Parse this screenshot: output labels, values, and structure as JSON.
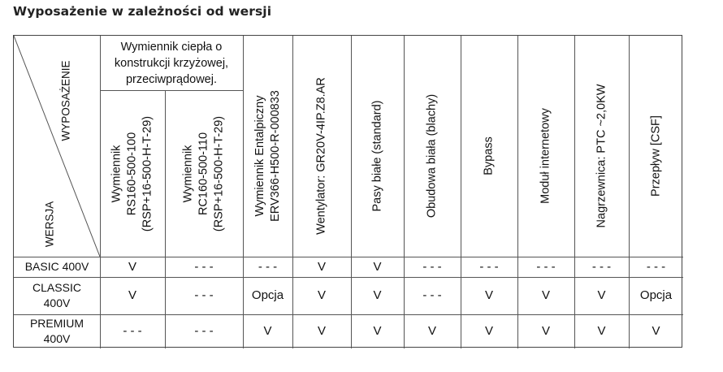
{
  "title": "Wyposażenie w zależności od wersji",
  "table": {
    "corner": {
      "top_right": "WYPOSAŻENIE",
      "bottom_left": "WERSJA"
    },
    "group_header": [
      "Wymiennik ciepła o",
      "konstrukcji krzyżowej,",
      "przeciwprądowej."
    ],
    "columns": [
      [
        "Wymiennik",
        "RS160-500-100",
        "(RSP+16-500-H-T-29)"
      ],
      [
        "Wymiennik",
        "RC160-500-110",
        "(RSP+16-500-H-T-29)"
      ],
      [
        "Wymiennik Entalpiczny",
        "ERV366-H500-R-000833"
      ],
      [
        "Wentylator: GR20V-4IP.Z8.AR"
      ],
      [
        "Pasy białe (standard)"
      ],
      [
        "Obudowa biała (blachy)"
      ],
      [
        "Bypass"
      ],
      [
        "Moduł internetowy"
      ],
      [
        "Nagrzewnica: PTC ~2,0KW"
      ],
      [
        "Przepływ [CSF]"
      ]
    ],
    "rows": [
      {
        "label": [
          "BASIC 400V"
        ],
        "values": [
          "V",
          "- - -",
          "- - -",
          "V",
          "V",
          "- - -",
          "- - -",
          "- - -",
          "- - -",
          "- - -"
        ]
      },
      {
        "label": [
          "CLASSIC",
          "400V"
        ],
        "values": [
          "V",
          "- - -",
          "Opcja",
          "V",
          "V",
          "- - -",
          "V",
          "V",
          "V",
          "Opcja"
        ]
      },
      {
        "label": [
          "PREMIUM",
          "400V"
        ],
        "values": [
          "- - -",
          "- - -",
          "V",
          "V",
          "V",
          "V",
          "V",
          "V",
          "V",
          "V"
        ]
      }
    ]
  }
}
